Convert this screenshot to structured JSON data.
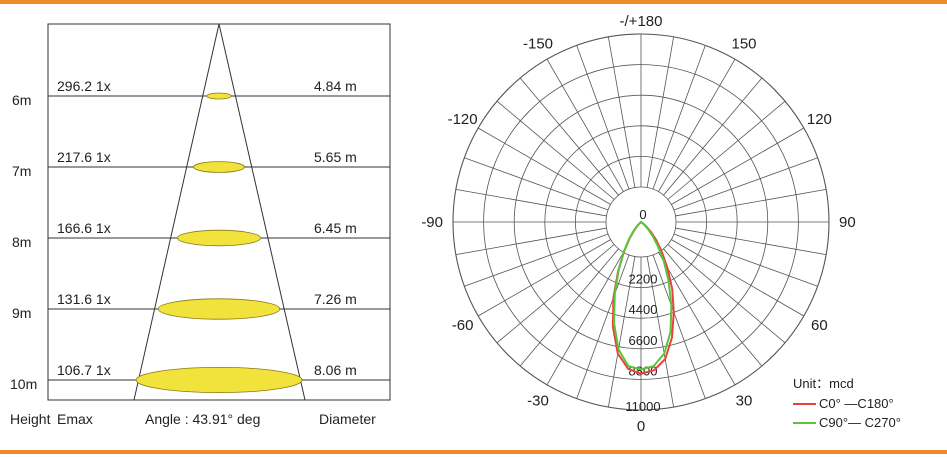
{
  "colors": {
    "rule": "#ed8a2c",
    "spot_fill": "#f2e23c",
    "spot_stroke": "#8a7a10",
    "grid": "#555555",
    "c0_c180": "#e8423a",
    "c90_c270": "#5ac43c"
  },
  "chart_data": [
    {
      "type": "table",
      "columns": [
        "Height",
        "Emax",
        "Angle",
        "Diameter"
      ],
      "footer": {
        "height_label": "Height",
        "emax_label": "Emax",
        "angle_label": "Angle : 43.91° deg",
        "diameter_label": "Diameter"
      },
      "rows": [
        {
          "height": "6m",
          "emax": "296.2 1x",
          "diameter": "4.84 m",
          "value_diameter_m": 4.84
        },
        {
          "height": "7m",
          "emax": "217.6 1x",
          "diameter": "5.65 m",
          "value_diameter_m": 5.65
        },
        {
          "height": "8m",
          "emax": "166.6 1x",
          "diameter": "6.45 m",
          "value_diameter_m": 6.45
        },
        {
          "height": "9m",
          "emax": "131.6 1x",
          "diameter": "7.26 m",
          "value_diameter_m": 7.26
        },
        {
          "height": "10m",
          "emax": "106.7 1x",
          "diameter": "8.06 m",
          "value_diameter_m": 8.06
        }
      ]
    },
    {
      "type": "line",
      "subtype": "polar",
      "angle_labels": [
        "-/+180",
        "150",
        "120",
        "90",
        "60",
        "30",
        "0",
        "-30",
        "-60",
        "-90",
        "-120",
        "-150"
      ],
      "radial_labels": [
        "0",
        "2200",
        "4400",
        "6600",
        "8800",
        "11000"
      ],
      "radial_range": [
        0,
        11000
      ],
      "unit": "Unit：mcd",
      "legend_position": "bottom-right",
      "series": [
        {
          "name": "C0° —C180°",
          "points": [
            [
              0,
              10900
            ],
            [
              5,
              10700
            ],
            [
              10,
              10000
            ],
            [
              15,
              8600
            ],
            [
              20,
              6900
            ],
            [
              25,
              5300
            ],
            [
              30,
              3800
            ],
            [
              35,
              2600
            ],
            [
              40,
              1700
            ],
            [
              45,
              1000
            ],
            [
              50,
              500
            ],
            [
              55,
              150
            ],
            [
              60,
              0
            ],
            [
              -5,
              10600
            ],
            [
              -10,
              9600
            ],
            [
              -15,
              7800
            ],
            [
              -20,
              5800
            ],
            [
              -25,
              3900
            ],
            [
              -30,
              2400
            ],
            [
              -35,
              1400
            ],
            [
              -40,
              700
            ],
            [
              -45,
              300
            ],
            [
              -50,
              0
            ]
          ]
        },
        {
          "name": "C90°— C270°",
          "points": [
            [
              0,
              10600
            ],
            [
              5,
              10400
            ],
            [
              10,
              9600
            ],
            [
              15,
              8200
            ],
            [
              20,
              6400
            ],
            [
              25,
              4700
            ],
            [
              30,
              3300
            ],
            [
              35,
              2100
            ],
            [
              40,
              1300
            ],
            [
              45,
              700
            ],
            [
              50,
              250
            ],
            [
              55,
              0
            ],
            [
              -5,
              10400
            ],
            [
              -10,
              9300
            ],
            [
              -15,
              7500
            ],
            [
              -20,
              5500
            ],
            [
              -25,
              3800
            ],
            [
              -30,
              2500
            ],
            [
              -35,
              1500
            ],
            [
              -40,
              800
            ],
            [
              -45,
              300
            ],
            [
              -50,
              0
            ]
          ]
        }
      ]
    }
  ]
}
